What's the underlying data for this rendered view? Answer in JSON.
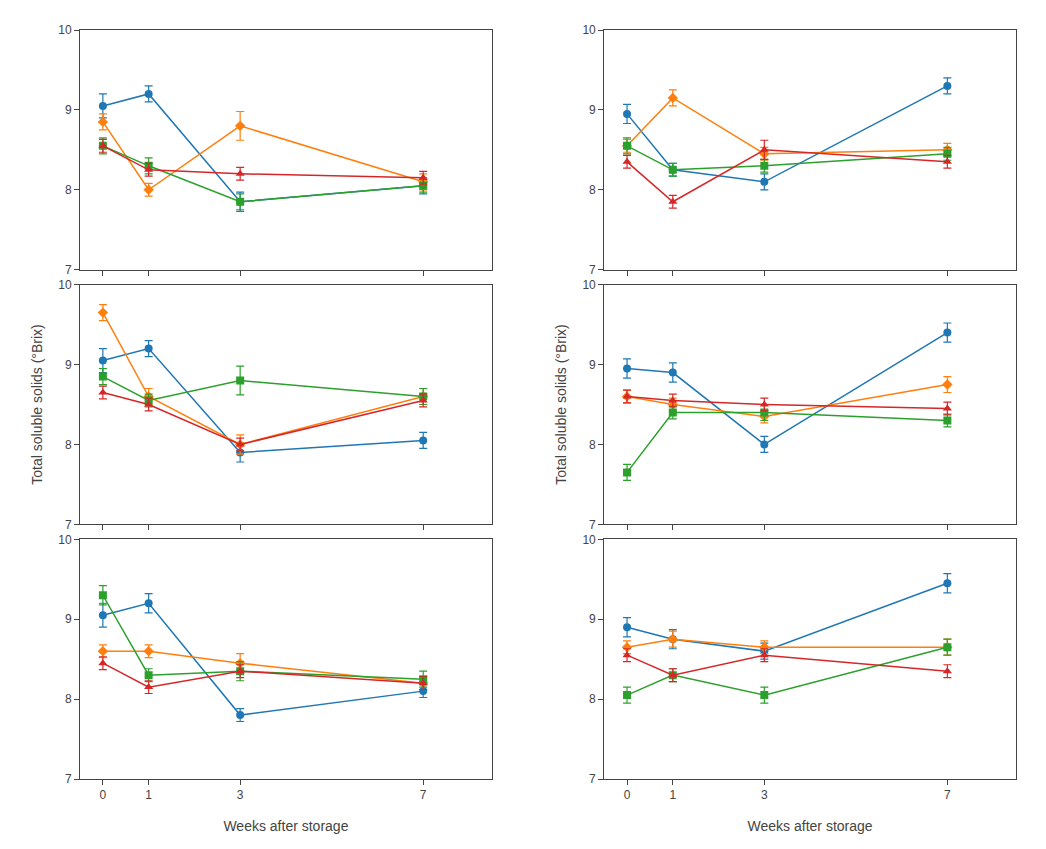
{
  "chart_data": [
    {
      "type": "line",
      "x": [
        0,
        1,
        3,
        7
      ],
      "xlim": [
        -0.5,
        8.5
      ],
      "ylim": [
        7,
        10
      ],
      "xticks": [
        0,
        1,
        3,
        7
      ],
      "yticks": [
        7,
        8,
        9,
        10
      ],
      "grid": false,
      "tick_labels": "y",
      "series": [
        {
          "marker": "circle",
          "values": [
            9.05,
            9.2,
            7.85,
            8.05
          ],
          "errors": [
            0.15,
            0.1,
            0.12,
            0.1
          ]
        },
        {
          "marker": "diamond",
          "values": [
            8.85,
            8.0,
            8.8,
            8.1
          ],
          "errors": [
            0.1,
            0.08,
            0.18,
            0.1
          ]
        },
        {
          "marker": "square",
          "values": [
            8.55,
            8.3,
            7.85,
            8.05
          ],
          "errors": [
            0.1,
            0.1,
            0.1,
            0.08
          ]
        },
        {
          "marker": "triangle",
          "values": [
            8.55,
            8.25,
            8.2,
            8.15
          ],
          "errors": [
            0.08,
            0.08,
            0.08,
            0.08
          ]
        }
      ]
    },
    {
      "type": "line",
      "x": [
        0,
        1,
        3,
        7
      ],
      "xlim": [
        -0.5,
        8.5
      ],
      "ylim": [
        7,
        10
      ],
      "xticks": [
        0,
        1,
        3,
        7
      ],
      "yticks": [
        7,
        8,
        9,
        10
      ],
      "grid": false,
      "tick_labels": "y",
      "ylabel": "Total soluble solids (°Brix)",
      "series": [
        {
          "marker": "circle",
          "values": [
            9.05,
            9.2,
            7.9,
            8.05
          ],
          "errors": [
            0.15,
            0.1,
            0.12,
            0.1
          ]
        },
        {
          "marker": "diamond",
          "values": [
            9.65,
            8.6,
            8.0,
            8.6
          ],
          "errors": [
            0.1,
            0.1,
            0.12,
            0.1
          ]
        },
        {
          "marker": "square",
          "values": [
            8.85,
            8.55,
            8.8,
            8.6
          ],
          "errors": [
            0.1,
            0.08,
            0.18,
            0.1
          ]
        },
        {
          "marker": "triangle",
          "values": [
            8.65,
            8.5,
            8.0,
            8.55
          ],
          "errors": [
            0.08,
            0.08,
            0.08,
            0.08
          ]
        }
      ]
    },
    {
      "type": "line",
      "x": [
        0,
        1,
        3,
        7
      ],
      "xlim": [
        -0.5,
        8.5
      ],
      "ylim": [
        7,
        10
      ],
      "xticks": [
        0,
        1,
        3,
        7
      ],
      "yticks": [
        7,
        8,
        9,
        10
      ],
      "grid": false,
      "xlabel": "Weeks after storage",
      "series": [
        {
          "marker": "circle",
          "values": [
            9.05,
            9.2,
            7.8,
            8.1
          ],
          "errors": [
            0.15,
            0.12,
            0.08,
            0.08
          ]
        },
        {
          "marker": "diamond",
          "values": [
            8.6,
            8.6,
            8.45,
            8.2
          ],
          "errors": [
            0.08,
            0.08,
            0.12,
            0.08
          ]
        },
        {
          "marker": "square",
          "values": [
            9.3,
            8.3,
            8.35,
            8.25
          ],
          "errors": [
            0.12,
            0.08,
            0.12,
            0.1
          ]
        },
        {
          "marker": "triangle",
          "values": [
            8.45,
            8.15,
            8.35,
            8.2
          ],
          "errors": [
            0.08,
            0.08,
            0.08,
            0.08
          ]
        }
      ]
    },
    {
      "type": "line",
      "x": [
        0,
        1,
        3,
        7
      ],
      "xlim": [
        -0.5,
        8.5
      ],
      "ylim": [
        7,
        10
      ],
      "xticks": [
        0,
        1,
        3,
        7
      ],
      "yticks": [
        7,
        8,
        9,
        10
      ],
      "grid": false,
      "tick_labels": "y",
      "series": [
        {
          "marker": "circle",
          "values": [
            8.95,
            8.25,
            8.1,
            9.3
          ],
          "errors": [
            0.12,
            0.08,
            0.1,
            0.1
          ]
        },
        {
          "marker": "diamond",
          "values": [
            8.55,
            9.15,
            8.45,
            8.5
          ],
          "errors": [
            0.08,
            0.1,
            0.08,
            0.08
          ]
        },
        {
          "marker": "square",
          "values": [
            8.55,
            8.25,
            8.3,
            8.45
          ],
          "errors": [
            0.1,
            0.08,
            0.08,
            0.08
          ]
        },
        {
          "marker": "triangle",
          "values": [
            8.35,
            7.85,
            8.5,
            8.35
          ],
          "errors": [
            0.08,
            0.08,
            0.12,
            0.08
          ]
        }
      ]
    },
    {
      "type": "line",
      "x": [
        0,
        1,
        3,
        7
      ],
      "xlim": [
        -0.5,
        8.5
      ],
      "ylim": [
        7,
        10
      ],
      "xticks": [
        0,
        1,
        3,
        7
      ],
      "yticks": [
        7,
        8,
        9,
        10
      ],
      "grid": false,
      "tick_labels": "y",
      "ylabel": "Total soluble solids (°Brix)",
      "series": [
        {
          "marker": "circle",
          "values": [
            8.95,
            8.9,
            8.0,
            9.4
          ],
          "errors": [
            0.12,
            0.12,
            0.1,
            0.12
          ]
        },
        {
          "marker": "diamond",
          "values": [
            8.6,
            8.5,
            8.35,
            8.75
          ],
          "errors": [
            0.08,
            0.08,
            0.08,
            0.1
          ]
        },
        {
          "marker": "square",
          "values": [
            7.65,
            8.4,
            8.4,
            8.3
          ],
          "errors": [
            0.1,
            0.08,
            0.1,
            0.08
          ]
        },
        {
          "marker": "triangle",
          "values": [
            8.6,
            8.55,
            8.5,
            8.45
          ],
          "errors": [
            0.08,
            0.08,
            0.08,
            0.08
          ]
        }
      ]
    },
    {
      "type": "line",
      "x": [
        0,
        1,
        3,
        7
      ],
      "xlim": [
        -0.5,
        8.5
      ],
      "ylim": [
        7,
        10
      ],
      "xticks": [
        0,
        1,
        3,
        7
      ],
      "yticks": [
        7,
        8,
        9,
        10
      ],
      "grid": false,
      "xlabel": "Weeks after storage",
      "series": [
        {
          "marker": "circle",
          "values": [
            8.9,
            8.75,
            8.6,
            9.45
          ],
          "errors": [
            0.12,
            0.12,
            0.1,
            0.12
          ]
        },
        {
          "marker": "diamond",
          "values": [
            8.65,
            8.75,
            8.65,
            8.65
          ],
          "errors": [
            0.08,
            0.1,
            0.08,
            0.1
          ]
        },
        {
          "marker": "square",
          "values": [
            8.05,
            8.3,
            8.05,
            8.65
          ],
          "errors": [
            0.1,
            0.08,
            0.1,
            0.1
          ]
        },
        {
          "marker": "triangle",
          "values": [
            8.55,
            8.3,
            8.55,
            8.35
          ],
          "errors": [
            0.08,
            0.08,
            0.08,
            0.08
          ]
        }
      ]
    }
  ]
}
